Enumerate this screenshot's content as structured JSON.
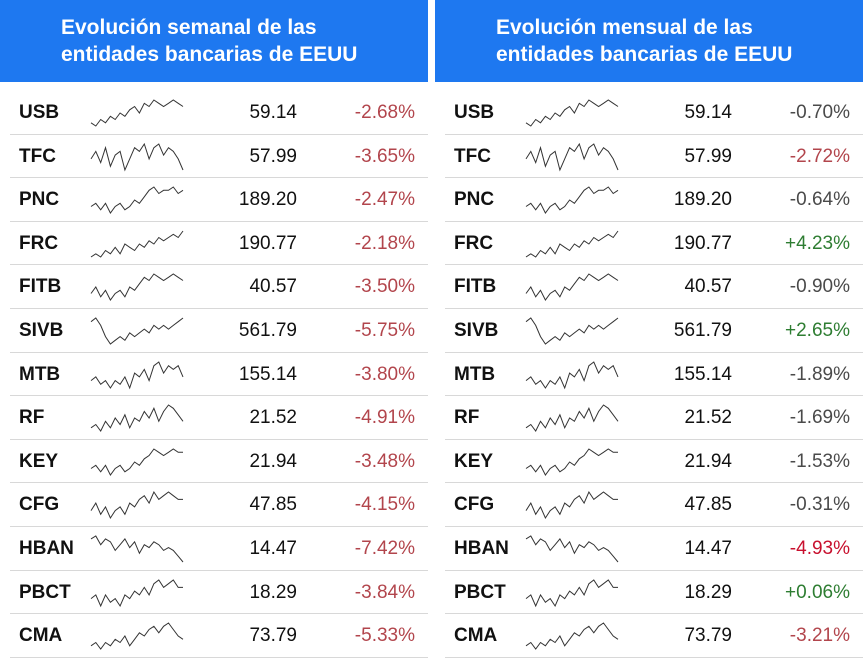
{
  "colors": {
    "header_bg": "#1e78f0",
    "header_text": "#ffffff",
    "negative": "#b2454c",
    "positive": "#2e7d32",
    "sparkline": "#333333",
    "divider": "#d8d8d8"
  },
  "chart_data": [
    {
      "type": "table",
      "title": "Evolución semanal de las\nentidades bancarias de EEUU",
      "columns": [
        "ticker",
        "sparkline",
        "price",
        "change"
      ],
      "rows": [
        {
          "ticker": "USB",
          "price": "59.14",
          "change": "-2.68%",
          "trend": [
            3,
            2,
            4,
            3,
            5,
            4,
            6,
            5,
            7,
            8,
            6,
            9,
            8,
            10,
            9,
            8,
            9,
            10,
            9,
            8
          ]
        },
        {
          "ticker": "TFC",
          "price": "57.99",
          "change": "-3.65%",
          "trend": [
            6,
            8,
            5,
            9,
            4,
            7,
            8,
            3,
            6,
            9,
            8,
            10,
            6,
            9,
            10,
            7,
            9,
            8,
            6,
            3
          ]
        },
        {
          "ticker": "PNC",
          "price": "189.20",
          "change": "-2.47%",
          "trend": [
            4,
            5,
            3,
            5,
            2,
            4,
            5,
            3,
            4,
            6,
            5,
            7,
            9,
            10,
            8,
            9,
            9,
            10,
            8,
            9
          ]
        },
        {
          "ticker": "FRC",
          "price": "190.77",
          "change": "-2.18%",
          "trend": [
            2,
            3,
            2,
            4,
            3,
            5,
            3,
            6,
            5,
            4,
            6,
            5,
            7,
            6,
            8,
            7,
            8,
            9,
            8,
            10
          ]
        },
        {
          "ticker": "FITB",
          "price": "40.57",
          "change": "-3.50%",
          "trend": [
            4,
            6,
            3,
            5,
            2,
            4,
            5,
            3,
            6,
            5,
            7,
            9,
            8,
            10,
            9,
            8,
            9,
            10,
            9,
            8
          ]
        },
        {
          "ticker": "SIVB",
          "price": "561.79",
          "change": "-5.75%",
          "trend": [
            9,
            10,
            8,
            5,
            3,
            4,
            5,
            4,
            6,
            5,
            6,
            7,
            6,
            8,
            7,
            8,
            7,
            8,
            9,
            10
          ]
        },
        {
          "ticker": "MTB",
          "price": "155.14",
          "change": "-3.80%",
          "trend": [
            5,
            6,
            4,
            5,
            3,
            5,
            4,
            6,
            3,
            7,
            6,
            8,
            5,
            9,
            10,
            7,
            9,
            8,
            9,
            6
          ]
        },
        {
          "ticker": "RF",
          "price": "21.52",
          "change": "-4.91%",
          "trend": [
            3,
            4,
            2,
            5,
            3,
            6,
            4,
            7,
            3,
            6,
            5,
            8,
            6,
            9,
            5,
            8,
            10,
            9,
            7,
            5
          ]
        },
        {
          "ticker": "KEY",
          "price": "21.94",
          "change": "-3.48%",
          "trend": [
            4,
            5,
            3,
            5,
            2,
            4,
            5,
            3,
            4,
            6,
            5,
            7,
            8,
            10,
            9,
            8,
            9,
            10,
            9,
            9
          ]
        },
        {
          "ticker": "CFG",
          "price": "47.85",
          "change": "-4.15%",
          "trend": [
            5,
            7,
            4,
            6,
            3,
            5,
            6,
            4,
            7,
            6,
            8,
            9,
            7,
            10,
            8,
            9,
            10,
            9,
            8,
            8
          ]
        },
        {
          "ticker": "HBAN",
          "price": "14.47",
          "change": "-7.42%",
          "trend": [
            9,
            10,
            7,
            9,
            8,
            5,
            7,
            9,
            6,
            8,
            4,
            7,
            6,
            8,
            7,
            5,
            6,
            5,
            3,
            1
          ]
        },
        {
          "ticker": "PBCT",
          "price": "18.29",
          "change": "-3.84%",
          "trend": [
            5,
            6,
            3,
            6,
            4,
            5,
            3,
            6,
            5,
            7,
            6,
            8,
            6,
            9,
            10,
            8,
            9,
            10,
            8,
            8
          ]
        },
        {
          "ticker": "CMA",
          "price": "73.79",
          "change": "-5.33%",
          "trend": [
            3,
            4,
            2,
            4,
            3,
            5,
            4,
            6,
            3,
            5,
            7,
            6,
            8,
            9,
            7,
            9,
            10,
            8,
            6,
            5
          ]
        }
      ]
    },
    {
      "type": "table",
      "title": "Evolución mensual de las\nentidades bancarias de EEUU",
      "columns": [
        "ticker",
        "sparkline",
        "price",
        "change"
      ],
      "rows": [
        {
          "ticker": "USB",
          "price": "59.14",
          "change": "-0.70%",
          "trend": [
            3,
            2,
            4,
            3,
            5,
            4,
            6,
            5,
            7,
            8,
            6,
            9,
            8,
            10,
            9,
            8,
            9,
            10,
            9,
            8
          ]
        },
        {
          "ticker": "TFC",
          "price": "57.99",
          "change": "-2.72%",
          "trend": [
            6,
            8,
            5,
            9,
            4,
            7,
            8,
            3,
            6,
            9,
            8,
            10,
            6,
            9,
            10,
            7,
            9,
            8,
            6,
            3
          ]
        },
        {
          "ticker": "PNC",
          "price": "189.20",
          "change": "-0.64%",
          "trend": [
            4,
            5,
            3,
            5,
            2,
            4,
            5,
            3,
            4,
            6,
            5,
            7,
            9,
            10,
            8,
            9,
            9,
            10,
            8,
            9
          ]
        },
        {
          "ticker": "FRC",
          "price": "190.77",
          "change": "+4.23%",
          "trend": [
            2,
            3,
            2,
            4,
            3,
            5,
            3,
            6,
            5,
            4,
            6,
            5,
            7,
            6,
            8,
            7,
            8,
            9,
            8,
            10
          ]
        },
        {
          "ticker": "FITB",
          "price": "40.57",
          "change": "-0.90%",
          "trend": [
            4,
            6,
            3,
            5,
            2,
            4,
            5,
            3,
            6,
            5,
            7,
            9,
            8,
            10,
            9,
            8,
            9,
            10,
            9,
            8
          ]
        },
        {
          "ticker": "SIVB",
          "price": "561.79",
          "change": "+2.65%",
          "trend": [
            9,
            10,
            8,
            5,
            3,
            4,
            5,
            4,
            6,
            5,
            6,
            7,
            6,
            8,
            7,
            8,
            7,
            8,
            9,
            10
          ]
        },
        {
          "ticker": "MTB",
          "price": "155.14",
          "change": "-1.89%",
          "trend": [
            5,
            6,
            4,
            5,
            3,
            5,
            4,
            6,
            3,
            7,
            6,
            8,
            5,
            9,
            10,
            7,
            9,
            8,
            9,
            6
          ]
        },
        {
          "ticker": "RF",
          "price": "21.52",
          "change": "-1.69%",
          "trend": [
            3,
            4,
            2,
            5,
            3,
            6,
            4,
            7,
            3,
            6,
            5,
            8,
            6,
            9,
            5,
            8,
            10,
            9,
            7,
            5
          ]
        },
        {
          "ticker": "KEY",
          "price": "21.94",
          "change": "-1.53%",
          "trend": [
            4,
            5,
            3,
            5,
            2,
            4,
            5,
            3,
            4,
            6,
            5,
            7,
            8,
            10,
            9,
            8,
            9,
            10,
            9,
            9
          ]
        },
        {
          "ticker": "CFG",
          "price": "47.85",
          "change": "-0.31%",
          "trend": [
            5,
            7,
            4,
            6,
            3,
            5,
            6,
            4,
            7,
            6,
            8,
            9,
            7,
            10,
            8,
            9,
            10,
            9,
            8,
            8
          ]
        },
        {
          "ticker": "HBAN",
          "price": "14.47",
          "change": "-4.93%",
          "trend": [
            9,
            10,
            7,
            9,
            8,
            5,
            7,
            9,
            6,
            8,
            4,
            7,
            6,
            8,
            7,
            5,
            6,
            5,
            3,
            1
          ]
        },
        {
          "ticker": "PBCT",
          "price": "18.29",
          "change": "+0.06%",
          "trend": [
            5,
            6,
            3,
            6,
            4,
            5,
            3,
            6,
            5,
            7,
            6,
            8,
            6,
            9,
            10,
            8,
            9,
            10,
            8,
            8
          ]
        },
        {
          "ticker": "CMA",
          "price": "73.79",
          "change": "-3.21%",
          "trend": [
            3,
            4,
            2,
            4,
            3,
            5,
            4,
            6,
            3,
            5,
            7,
            6,
            8,
            9,
            7,
            9,
            10,
            8,
            6,
            5
          ]
        }
      ]
    }
  ]
}
